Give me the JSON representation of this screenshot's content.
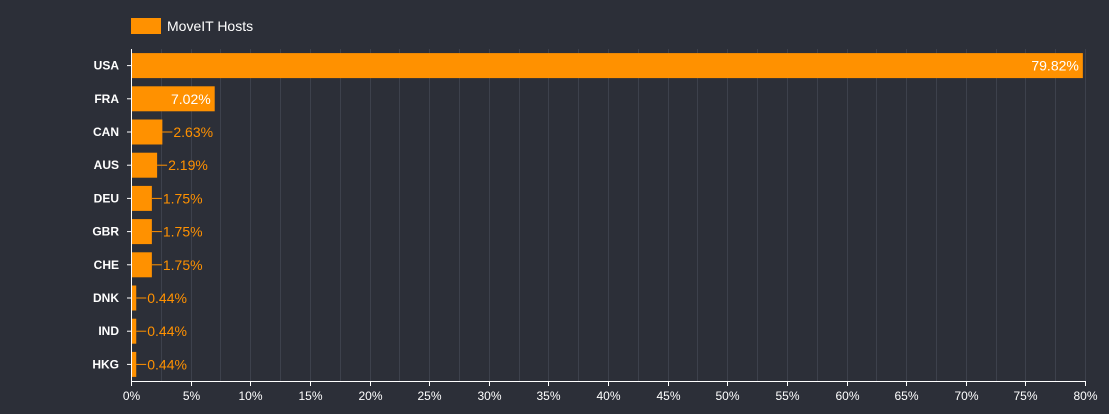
{
  "chart_data": {
    "type": "bar",
    "orientation": "horizontal",
    "categories": [
      "USA",
      "FRA",
      "CAN",
      "AUS",
      "DEU",
      "GBR",
      "CHE",
      "DNK",
      "IND",
      "HKG"
    ],
    "series": [
      {
        "name": "MoveIT Hosts",
        "values": [
          79.82,
          7.02,
          2.63,
          2.19,
          1.75,
          1.75,
          1.75,
          0.44,
          0.44,
          0.44
        ],
        "labels": [
          "79.82%",
          "7.02%",
          "2.63%",
          "2.19%",
          "1.75%",
          "1.75%",
          "1.75%",
          "0.44%",
          "0.44%",
          "0.44%"
        ]
      }
    ],
    "xlim": [
      0,
      80
    ],
    "xticks": [
      0,
      5,
      10,
      15,
      20,
      25,
      30,
      35,
      40,
      45,
      50,
      55,
      60,
      65,
      70,
      75,
      80
    ],
    "xtick_labels": [
      "0%",
      "5%",
      "10%",
      "15%",
      "20%",
      "25%",
      "30%",
      "35%",
      "40%",
      "45%",
      "50%",
      "55%",
      "60%",
      "65%",
      "70%",
      "75%",
      "80%"
    ],
    "grid": true,
    "legend_position": "top-left",
    "title": "",
    "xlabel": "",
    "ylabel": ""
  },
  "colors": {
    "background": "#2c2f38",
    "bar": "#ff9100",
    "grid": "#3d414c",
    "axis": "#ffffff",
    "text": "#ffffff",
    "label_outside": "#ff9100",
    "label_inside": "#ffffff"
  }
}
